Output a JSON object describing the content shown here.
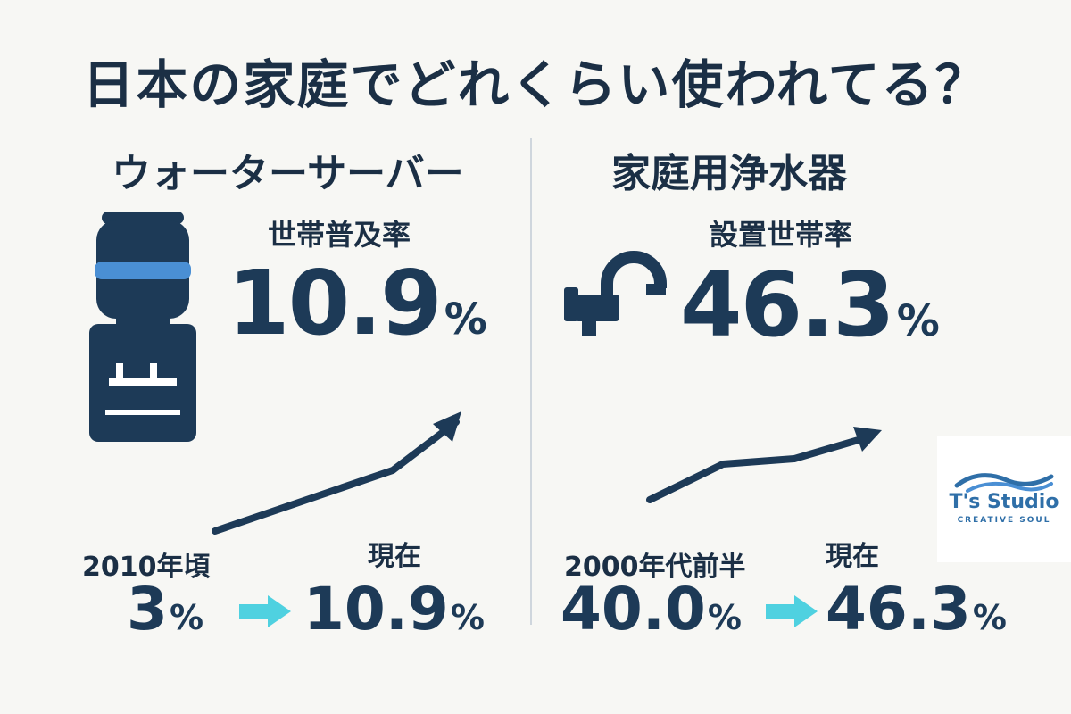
{
  "title": "日本の家庭でどれくらい使われてる？",
  "left": {
    "heading": "ウォーターサーバー",
    "stat_label": "世帯普及率",
    "stat_value": "10.9",
    "stat_unit": "%",
    "from_label": "2010年頃",
    "from_value": "3",
    "from_unit": "%",
    "to_label": "現在",
    "to_value": "10.9",
    "to_unit": "%",
    "icon": "water-dispenser-icon"
  },
  "right": {
    "heading": "家庭用浄水器",
    "stat_label": "設置世帯率",
    "stat_value": "46.3",
    "stat_unit": "%",
    "from_label": "2000年代前半",
    "from_value": "40.0",
    "from_unit": "%",
    "to_label": "現在",
    "to_value": "46.3",
    "to_unit": "%",
    "icon": "faucet-icon"
  },
  "logo": {
    "name": "T's Studio",
    "tagline": "CREATIVE SOUL"
  },
  "colors": {
    "navy": "#1d3a57",
    "accent_blue": "#4a8fd4",
    "arrow_cyan": "#4fd1e0",
    "background": "#f7f7f4"
  }
}
